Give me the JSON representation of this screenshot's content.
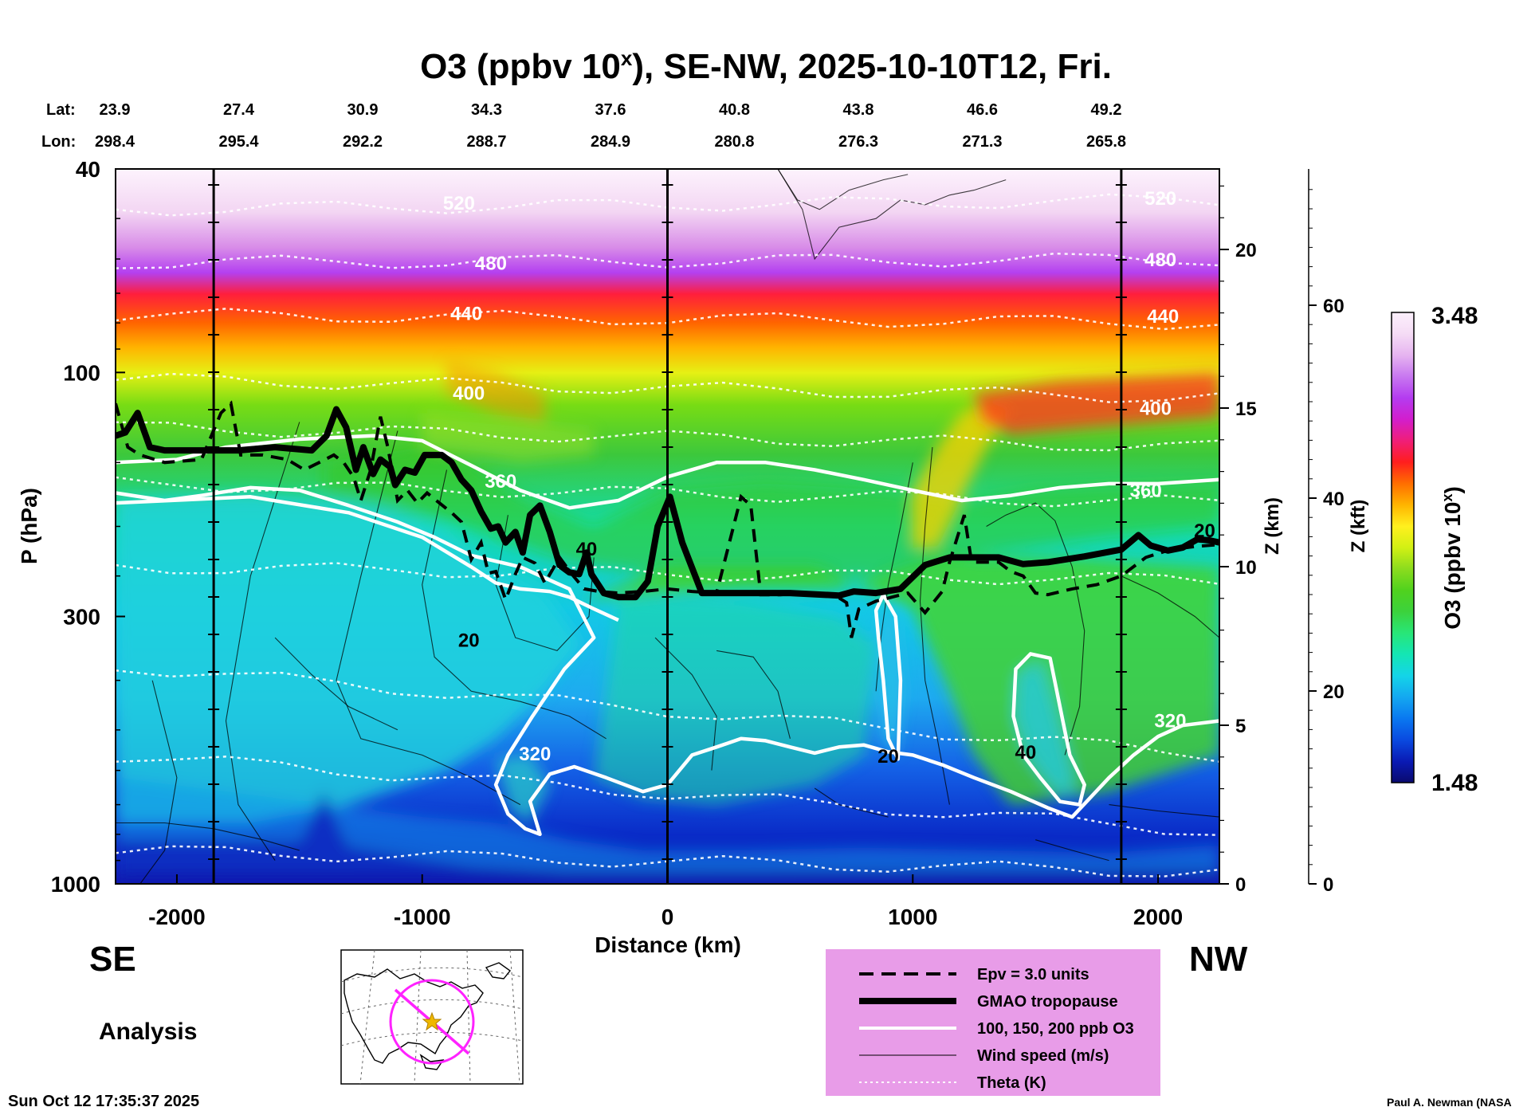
{
  "chart_data": {
    "type": "heatmap",
    "title_main": "O3 (ppbv 10",
    "title_sup": "x",
    "title_rest": "), SE-NW, 2025-10-10T12, Fri.",
    "xlabel": "Distance (km)",
    "ylabel": "P (hPa)",
    "zkm_label": "Z (km)",
    "zkft_label": "Z (kft)",
    "colorbar_label_main": "O3 (ppbv 10",
    "colorbar_label_sup": "x",
    "colorbar_label_rest": ")",
    "colorbar_max": "3.48",
    "colorbar_min": "1.48",
    "xlim": [
      -2250,
      2250
    ],
    "ylim_hpa": [
      1000,
      40
    ],
    "x_ticks": [
      {
        "value": -2000,
        "label": "-2000"
      },
      {
        "value": -1000,
        "label": "-1000"
      },
      {
        "value": 0,
        "label": "0"
      },
      {
        "value": 1000,
        "label": "1000"
      },
      {
        "value": 2000,
        "label": "2000"
      }
    ],
    "p_ticks": [
      {
        "value": 40,
        "label": "40"
      },
      {
        "value": 100,
        "label": "100"
      },
      {
        "value": 300,
        "label": "300"
      },
      {
        "value": 1000,
        "label": "1000"
      }
    ],
    "z_km_ticks": [
      {
        "value": 0,
        "label": "0"
      },
      {
        "value": 5,
        "label": "5"
      },
      {
        "value": 10,
        "label": "10"
      },
      {
        "value": 15,
        "label": "15"
      },
      {
        "value": 20,
        "label": "20"
      }
    ],
    "z_kft_ticks": [
      {
        "value": 0,
        "label": "0"
      },
      {
        "value": 20,
        "label": "20"
      },
      {
        "value": 40,
        "label": "40"
      },
      {
        "value": 60,
        "label": "60"
      }
    ],
    "lat_label": "Lat:",
    "lon_label": "Lon:",
    "positions": [
      {
        "lat": "23.9",
        "lon": "298.4"
      },
      {
        "lat": "27.4",
        "lon": "295.4"
      },
      {
        "lat": "30.9",
        "lon": "292.2"
      },
      {
        "lat": "34.3",
        "lon": "288.7"
      },
      {
        "lat": "37.6",
        "lon": "284.9"
      },
      {
        "lat": "40.8",
        "lon": "280.8"
      },
      {
        "lat": "43.8",
        "lon": "276.3"
      },
      {
        "lat": "46.6",
        "lon": "271.3"
      },
      {
        "lat": "49.2",
        "lon": "265.8"
      }
    ],
    "theta_labels": [
      {
        "text": "520",
        "x": -850,
        "p": 48
      },
      {
        "text": "480",
        "x": -720,
        "p": 63
      },
      {
        "text": "440",
        "x": -820,
        "p": 79
      },
      {
        "text": "400",
        "x": -810,
        "p": 113
      },
      {
        "text": "360",
        "x": -680,
        "p": 168
      },
      {
        "text": "320",
        "x": -540,
        "p": 573
      },
      {
        "text": "520",
        "x": 2010,
        "p": 47
      },
      {
        "text": "480",
        "x": 2010,
        "p": 62
      },
      {
        "text": "440",
        "x": 2020,
        "p": 80
      },
      {
        "text": "400",
        "x": 1990,
        "p": 121
      },
      {
        "text": "360",
        "x": 1950,
        "p": 175
      },
      {
        "text": "320",
        "x": 2050,
        "p": 494
      }
    ],
    "wind_labels": [
      {
        "text": "20",
        "x": -810,
        "p": 344
      },
      {
        "text": "40",
        "x": -330,
        "p": 228
      },
      {
        "text": "20",
        "x": 900,
        "p": 580
      },
      {
        "text": "40",
        "x": 1460,
        "p": 569
      },
      {
        "text": "20",
        "x": 2190,
        "p": 210
      }
    ],
    "tropopause": [
      [
        -2250,
        133
      ],
      [
        -2210,
        131
      ],
      [
        -2160,
        120
      ],
      [
        -2110,
        140
      ],
      [
        -2050,
        142
      ],
      [
        -1900,
        142
      ],
      [
        -1750,
        142
      ],
      [
        -1600,
        140
      ],
      [
        -1450,
        142
      ],
      [
        -1390,
        133
      ],
      [
        -1350,
        118
      ],
      [
        -1310,
        128
      ],
      [
        -1270,
        155
      ],
      [
        -1240,
        140
      ],
      [
        -1200,
        158
      ],
      [
        -1170,
        148
      ],
      [
        -1130,
        153
      ],
      [
        -1110,
        166
      ],
      [
        -1070,
        155
      ],
      [
        -1030,
        157
      ],
      [
        -990,
        145
      ],
      [
        -920,
        145
      ],
      [
        -880,
        150
      ],
      [
        -840,
        162
      ],
      [
        -800,
        170
      ],
      [
        -760,
        187
      ],
      [
        -720,
        202
      ],
      [
        -690,
        200
      ],
      [
        -660,
        215
      ],
      [
        -620,
        205
      ],
      [
        -590,
        225
      ],
      [
        -560,
        190
      ],
      [
        -520,
        182
      ],
      [
        -480,
        205
      ],
      [
        -440,
        238
      ],
      [
        -400,
        246
      ],
      [
        -360,
        248
      ],
      [
        -330,
        225
      ],
      [
        -310,
        248
      ],
      [
        -260,
        270
      ],
      [
        -200,
        275
      ],
      [
        -130,
        275
      ],
      [
        -80,
        256
      ],
      [
        -40,
        200
      ],
      [
        10,
        175
      ],
      [
        60,
        215
      ],
      [
        140,
        270
      ],
      [
        300,
        270
      ],
      [
        500,
        270
      ],
      [
        700,
        273
      ],
      [
        760,
        268
      ],
      [
        850,
        270
      ],
      [
        950,
        265
      ],
      [
        1050,
        238
      ],
      [
        1150,
        230
      ],
      [
        1350,
        230
      ],
      [
        1450,
        237
      ],
      [
        1550,
        235
      ],
      [
        1700,
        229
      ],
      [
        1850,
        222
      ],
      [
        1920,
        208
      ],
      [
        1970,
        218
      ],
      [
        2040,
        223
      ],
      [
        2100,
        220
      ],
      [
        2160,
        212
      ],
      [
        2210,
        213
      ],
      [
        2250,
        215
      ]
    ],
    "epv3": [
      [
        -2250,
        115
      ],
      [
        -2200,
        140
      ],
      [
        -2150,
        145
      ],
      [
        -2050,
        150
      ],
      [
        -1900,
        148
      ],
      [
        -1820,
        120
      ],
      [
        -1780,
        115
      ],
      [
        -1740,
        145
      ],
      [
        -1650,
        145
      ],
      [
        -1550,
        148
      ],
      [
        -1480,
        155
      ],
      [
        -1420,
        150
      ],
      [
        -1360,
        145
      ],
      [
        -1320,
        150
      ],
      [
        -1280,
        160
      ],
      [
        -1250,
        178
      ],
      [
        -1210,
        155
      ],
      [
        -1170,
        122
      ],
      [
        -1140,
        140
      ],
      [
        -1100,
        178
      ],
      [
        -1060,
        170
      ],
      [
        -1020,
        180
      ],
      [
        -980,
        172
      ],
      [
        -930,
        180
      ],
      [
        -880,
        188
      ],
      [
        -840,
        196
      ],
      [
        -800,
        232
      ],
      [
        -760,
        215
      ],
      [
        -730,
        247
      ],
      [
        -700,
        245
      ],
      [
        -660,
        278
      ],
      [
        -620,
        248
      ],
      [
        -590,
        230
      ],
      [
        -540,
        236
      ],
      [
        -500,
        258
      ],
      [
        -440,
        230
      ],
      [
        -390,
        248
      ],
      [
        -340,
        265
      ],
      [
        -280,
        268
      ],
      [
        -200,
        270
      ],
      [
        -100,
        268
      ],
      [
        0,
        265
      ],
      [
        100,
        268
      ],
      [
        200,
        270
      ],
      [
        300,
        175
      ],
      [
        340,
        182
      ],
      [
        380,
        272
      ],
      [
        460,
        272
      ],
      [
        550,
        270
      ],
      [
        650,
        272
      ],
      [
        700,
        276
      ],
      [
        730,
        282
      ],
      [
        750,
        330
      ],
      [
        780,
        290
      ],
      [
        850,
        280
      ],
      [
        980,
        270
      ],
      [
        1050,
        295
      ],
      [
        1120,
        268
      ],
      [
        1150,
        235
      ],
      [
        1210,
        190
      ],
      [
        1240,
        235
      ],
      [
        1300,
        235
      ],
      [
        1350,
        235
      ],
      [
        1400,
        245
      ],
      [
        1450,
        250
      ],
      [
        1500,
        270
      ],
      [
        1550,
        272
      ],
      [
        1650,
        265
      ],
      [
        1750,
        260
      ],
      [
        1850,
        250
      ],
      [
        1950,
        230
      ],
      [
        2050,
        222
      ],
      [
        2150,
        219
      ],
      [
        2250,
        217
      ]
    ],
    "o3_contours": [
      [
        [
          -2250,
          150
        ],
        [
          -2000,
          148
        ],
        [
          -1800,
          140
        ],
        [
          -1500,
          135
        ],
        [
          -1200,
          133
        ],
        [
          -1000,
          136
        ],
        [
          -800,
          152
        ],
        [
          -600,
          170
        ],
        [
          -400,
          184
        ],
        [
          -200,
          178
        ],
        [
          0,
          160
        ],
        [
          200,
          150
        ],
        [
          400,
          150
        ],
        [
          600,
          155
        ],
        [
          800,
          162
        ],
        [
          1000,
          170
        ],
        [
          1200,
          178
        ],
        [
          1400,
          174
        ],
        [
          1600,
          168
        ],
        [
          1800,
          165
        ],
        [
          2000,
          165
        ],
        [
          2250,
          162
        ]
      ],
      [
        [
          -2250,
          172
        ],
        [
          -2050,
          178
        ],
        [
          -1900,
          174
        ],
        [
          -1700,
          168
        ],
        [
          -1500,
          170
        ],
        [
          -1300,
          182
        ],
        [
          -1100,
          196
        ],
        [
          -950,
          210
        ],
        [
          -800,
          228
        ],
        [
          -600,
          240
        ],
        [
          -400,
          265
        ],
        [
          -300,
          330
        ],
        [
          -420,
          380
        ],
        [
          -550,
          470
        ],
        [
          -650,
          560
        ],
        [
          -700,
          640
        ],
        [
          -650,
          730
        ],
        [
          -580,
          780
        ],
        [
          -520,
          800
        ],
        [
          -560,
          690
        ],
        [
          -480,
          610
        ],
        [
          -380,
          590
        ],
        [
          -250,
          620
        ],
        [
          -100,
          660
        ],
        [
          0,
          640
        ],
        [
          100,
          560
        ],
        [
          200,
          540
        ],
        [
          300,
          520
        ],
        [
          400,
          525
        ],
        [
          500,
          540
        ],
        [
          600,
          555
        ],
        [
          700,
          540
        ],
        [
          800,
          535
        ],
        [
          900,
          552
        ],
        [
          1000,
          560
        ],
        [
          1120,
          585
        ],
        [
          1250,
          620
        ],
        [
          1400,
          660
        ],
        [
          1550,
          710
        ],
        [
          1650,
          740
        ],
        [
          1800,
          620
        ],
        [
          1900,
          560
        ],
        [
          2000,
          515
        ],
        [
          2100,
          490
        ],
        [
          2250,
          480
        ]
      ],
      [
        [
          -2250,
          180
        ],
        [
          -1700,
          175
        ],
        [
          -1300,
          188
        ],
        [
          -1000,
          210
        ],
        [
          -800,
          240
        ],
        [
          -700,
          258
        ],
        [
          -600,
          265
        ],
        [
          -480,
          268
        ],
        [
          -400,
          275
        ],
        [
          -300,
          290
        ],
        [
          -200,
          305
        ]
      ],
      [
        [
          850,
          292
        ],
        [
          880,
          272
        ],
        [
          930,
          300
        ],
        [
          950,
          400
        ],
        [
          940,
          570
        ],
        [
          900,
          520
        ],
        [
          880,
          400
        ],
        [
          860,
          330
        ]
      ],
      [
        [
          1420,
          380
        ],
        [
          1480,
          355
        ],
        [
          1560,
          362
        ],
        [
          1600,
          450
        ],
        [
          1640,
          560
        ],
        [
          1700,
          640
        ],
        [
          1680,
          700
        ],
        [
          1600,
          690
        ],
        [
          1520,
          620
        ],
        [
          1450,
          560
        ],
        [
          1410,
          470
        ]
      ]
    ],
    "legend": [
      {
        "style": "dashed",
        "label": "Epv = 3.0 units"
      },
      {
        "style": "thick",
        "label": "GMAO tropopause"
      },
      {
        "style": "white",
        "label": "100, 150, 200 ppb O3"
      },
      {
        "style": "thin",
        "label": "Wind speed (m/s)"
      },
      {
        "style": "dotted",
        "label": "Theta (K)"
      }
    ],
    "section_start": "SE",
    "section_end": "NW",
    "analysis_label": "Analysis",
    "run_timestamp": "Sun Oct 12 17:35:37 2025",
    "credit": "Paul A. Newman (NASA"
  },
  "colors": {
    "background": "#ffffff",
    "legend_bg": "#e89ce8",
    "map_track": "#ff22ff",
    "map_center": "#f0b800",
    "colorbar": [
      "#0a0a6e",
      "#0a1ab4",
      "#0a4ae0",
      "#0a78f0",
      "#14a8f0",
      "#14d4e8",
      "#14e6b4",
      "#28e678",
      "#3cd23c",
      "#50d21e",
      "#8cdc1e",
      "#d2f014",
      "#fff01e",
      "#ffb400",
      "#ff6e00",
      "#ff1e1e",
      "#f01e78",
      "#d21ecd",
      "#b43cf0",
      "#c878f0",
      "#e6b4f0",
      "#f5dcf5",
      "#fcf0fc"
    ]
  }
}
